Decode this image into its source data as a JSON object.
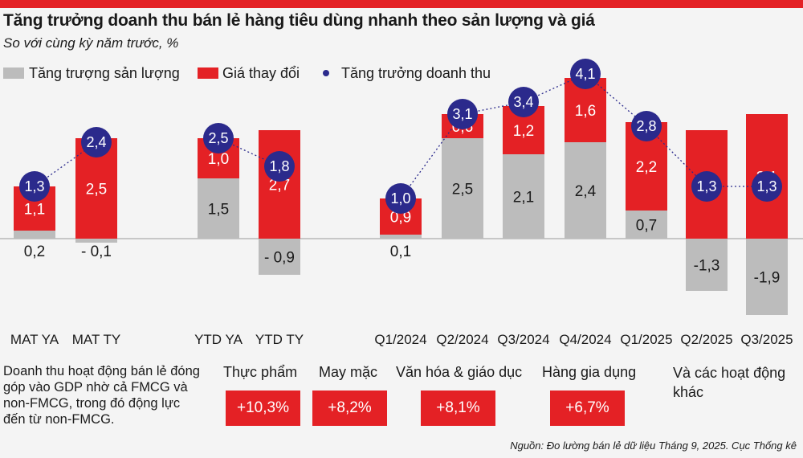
{
  "title": "Tăng trưởng doanh thu bán lẻ hàng tiêu dùng nhanh theo sản lượng và giá",
  "subtitle": "So với cùng kỳ năm trước, %",
  "colors": {
    "volume": "#bcbcbc",
    "price": "#e42125",
    "revenue": "#2b2a8c",
    "accent_rule": "#e42125"
  },
  "chart_data": {
    "type": "bar",
    "stacked": true,
    "unit": "%",
    "categories": [
      "MAT YA",
      "MAT TY",
      "YTD YA",
      "YTD TY",
      "Q1/2024",
      "Q2/2024",
      "Q3/2024",
      "Q4/2024",
      "Q1/2025",
      "Q2/2025",
      "Q3/2025"
    ],
    "series": [
      {
        "name": "Tăng trượng sản lượng",
        "kind": "bar",
        "color": "#bcbcbc",
        "values": [
          0.2,
          -0.1,
          1.5,
          -0.9,
          0.1,
          2.5,
          2.1,
          2.4,
          0.7,
          -1.3,
          -1.9
        ],
        "labels": [
          "0,2",
          "- 0,1",
          "1,5",
          "- 0,9",
          "0,1",
          "2,5",
          "2,1",
          "2,4",
          "0,7",
          "-1,3",
          "-1,9"
        ]
      },
      {
        "name": "Giá thay đổi",
        "kind": "bar",
        "color": "#e42125",
        "values": [
          1.1,
          2.5,
          1.0,
          2.7,
          0.9,
          0.6,
          1.2,
          1.6,
          2.2,
          2.7,
          3.1
        ],
        "labels": [
          "1,1",
          "2,5",
          "1,0",
          "2,7",
          "0,9",
          "0,6",
          "1,2",
          "1,6",
          "2,2",
          "2,7",
          "3,1"
        ]
      },
      {
        "name": "Tăng trưởng doanh thu",
        "kind": "point",
        "color": "#2b2a8c",
        "values": [
          1.3,
          2.4,
          2.5,
          1.8,
          1.0,
          3.1,
          3.4,
          4.1,
          2.8,
          1.3,
          1.3
        ],
        "labels": [
          "1,3",
          "2,4",
          "2,5",
          "1,8",
          "1,0",
          "3,1",
          "3,4",
          "4,1",
          "2,8",
          "1,3",
          "1,3"
        ]
      }
    ],
    "connected_pairs": [
      [
        0,
        1
      ],
      [
        2,
        3
      ],
      [
        4,
        5
      ],
      [
        5,
        6
      ],
      [
        6,
        7
      ],
      [
        7,
        8
      ],
      [
        8,
        9
      ],
      [
        9,
        10
      ]
    ],
    "ylim": [
      -2.0,
      4.3
    ],
    "grid": false,
    "legend_position": "top-left"
  },
  "note": "Doanh thu hoạt động bán lẻ đóng góp vào GDP nhờ cả FMCG và non-FMCG, trong đó động lực đến từ non-FMCG.",
  "sectors": [
    {
      "label": "Thực phẩm",
      "value": "+10,3%"
    },
    {
      "label": "May mặc",
      "value": "+8,2%"
    },
    {
      "label": "Văn hóa & giáo dục",
      "value": "+8,1%"
    },
    {
      "label": "Hàng gia dụng",
      "value": "+6,7%"
    },
    {
      "label": "Và các hoạt động khác",
      "value": ""
    }
  ],
  "source": "Nguồn: Đo lường bán lẻ dữ liệu Tháng 9, 2025. Cục Thống kê"
}
